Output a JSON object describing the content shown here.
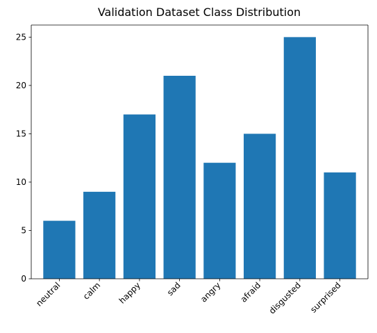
{
  "chart_data": {
    "type": "bar",
    "title": "Validation Dataset Class Distribution",
    "xlabel": "",
    "ylabel": "",
    "categories": [
      "neutral",
      "calm",
      "happy",
      "sad",
      "angry",
      "afraid",
      "disgusted",
      "surprised"
    ],
    "values": [
      6,
      9,
      17,
      21,
      12,
      15,
      25,
      11
    ],
    "ylim": [
      0,
      26.25
    ],
    "yticks": [
      0,
      5,
      10,
      15,
      20,
      25
    ],
    "grid": false,
    "bar_color": "#1f77b4"
  }
}
